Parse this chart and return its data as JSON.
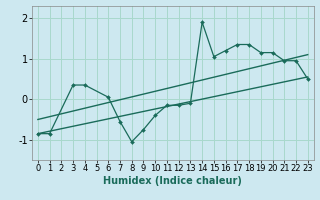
{
  "xlabel": "Humidex (Indice chaleur)",
  "bg_color": "#cde8f0",
  "grid_color": "#a8d8cc",
  "line_color": "#1a6b5a",
  "xlim": [
    -0.5,
    23.5
  ],
  "ylim": [
    -1.5,
    2.3
  ],
  "yticks": [
    -1,
    0,
    1,
    2
  ],
  "xticks": [
    0,
    1,
    2,
    3,
    4,
    5,
    6,
    7,
    8,
    9,
    10,
    11,
    12,
    13,
    14,
    15,
    16,
    17,
    18,
    19,
    20,
    21,
    22,
    23
  ],
  "series1_x": [
    0,
    1,
    3,
    4,
    6,
    7,
    8,
    9,
    10,
    11,
    12,
    13,
    14,
    15,
    16,
    17,
    18,
    19,
    20,
    21,
    22,
    23
  ],
  "series1_y": [
    -0.85,
    -0.85,
    0.35,
    0.35,
    0.05,
    -0.55,
    -1.05,
    -0.75,
    -0.4,
    -0.15,
    -0.15,
    -0.1,
    1.9,
    1.05,
    1.2,
    1.35,
    1.35,
    1.15,
    1.15,
    0.95,
    0.95,
    0.5
  ],
  "trend1_x": [
    0,
    23
  ],
  "trend1_y": [
    -0.85,
    0.55
  ],
  "trend2_x": [
    0,
    23
  ],
  "trend2_y": [
    -0.5,
    1.1
  ],
  "xlabel_fontsize": 7,
  "tick_fontsize": 6
}
